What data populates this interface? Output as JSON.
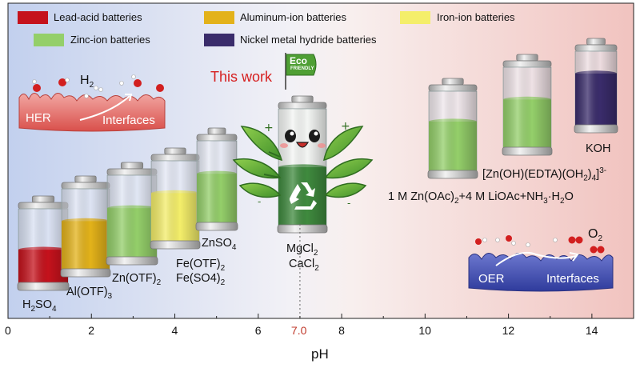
{
  "colors": {
    "bg_left": "#c5d3ef",
    "bg_mid": "#f6f3f4",
    "bg_right": "#f1c6c2",
    "lead_acid": "#c5121c",
    "aluminum_ion": "#e3b21a",
    "iron_ion": "#f4ee6a",
    "zinc_ion": "#94cf6a",
    "nimh": "#3a2c6b",
    "this_work_text": "#d62020",
    "eco_flag": "#5aaa3a",
    "seven_tick": "#c0392b"
  },
  "legend": [
    {
      "label": "Lead-acid batteries",
      "color": "#c5121c"
    },
    {
      "label": "Aluminum-ion batteries",
      "color": "#e3b21a"
    },
    {
      "label": "Iron-ion batteries",
      "color": "#f4ee6a"
    },
    {
      "label": "Zinc-ion batteries",
      "color": "#94cf6a"
    },
    {
      "label": "Nickel metal hydride batteries",
      "color": "#3a2c6b"
    }
  ],
  "annotations": {
    "this_work": "This work",
    "eco_line1": "Eco",
    "eco_line2": "FRIENDLY",
    "her_label": "HER",
    "her_interfaces": "Interfaces",
    "h2_base": "H",
    "h2_sub": "2",
    "oer_label": "OER",
    "oer_interfaces": "Interfaces",
    "o2_base": "O",
    "o2_sub": "2"
  },
  "labels": {
    "h2so4": {
      "a": "H",
      "b": "2",
      "c": "SO",
      "d": "4"
    },
    "al_otf": {
      "a": "Al(OTF)",
      "b": "3"
    },
    "zn_otf": {
      "a": "Zn(OTF)",
      "b": "2"
    },
    "fe_otf": {
      "a": "Fe(OTF)",
      "b": "2"
    },
    "fe_so4": {
      "a": "Fe(SO4)",
      "b": "2"
    },
    "znso4": {
      "a": "ZnSO",
      "b": "4"
    },
    "mgcl": {
      "a": "MgCl",
      "b": "2"
    },
    "cacl": {
      "a": "CaCl",
      "b": "2"
    },
    "zn_acetate": {
      "a": "1 M Zn(OAc)",
      "b": "2",
      "c": "+4 M LiOAc+NH",
      "d": "3",
      "e": "·H",
      "f": "2",
      "g": "O"
    },
    "zn_edta": {
      "a": "[Zn(OH)(EDTA)(OH",
      "b": "2",
      "c": ")",
      "d": "4",
      "e": "]",
      "f": "3-"
    },
    "koh": {
      "a": "KOH"
    }
  },
  "axis": {
    "xlabel": "pH",
    "ticks": [
      "0",
      "2",
      "4",
      "6",
      "8",
      "10",
      "12",
      "14"
    ],
    "highlight_tick": "7.0",
    "range": [
      0,
      15
    ]
  },
  "batteries": [
    {
      "name": "lead-acid",
      "category": "H2SO4",
      "ph": 1,
      "fill": 0.45,
      "color": "#c5121c"
    },
    {
      "name": "aluminum-ion",
      "category": "Al(OTF)3",
      "ph": 2,
      "fill": 0.6,
      "color": "#e3b21a"
    },
    {
      "name": "zinc-ion-otf",
      "category": "Zn(OTF)2",
      "ph": 3,
      "fill": 0.6,
      "color": "#94cf6a"
    },
    {
      "name": "iron-ion",
      "category": "Fe(OTF)2 Fe(SO4)2",
      "ph": 4,
      "fill": 0.6,
      "color": "#f4ee6a"
    },
    {
      "name": "zinc-ion-znso4",
      "category": "ZnSO4",
      "ph": 5,
      "fill": 0.6,
      "color": "#94cf6a"
    },
    {
      "name": "this-work",
      "category": "MgCl2 CaCl2",
      "ph": 7,
      "fill": 0.5,
      "color": "#3f8a3e"
    },
    {
      "name": "zinc-ion-acetate",
      "category": "1 M Zn(OAc)2",
      "ph": 10,
      "fill": 0.62,
      "color": "#94cf6a"
    },
    {
      "name": "zinc-ion-edta",
      "category": "[Zn(OH)(EDTA)(OH2)4]3-",
      "ph": 12,
      "fill": 0.6,
      "color": "#94cf6a"
    },
    {
      "name": "nimh",
      "category": "KOH",
      "ph": 14,
      "fill": 0.7,
      "color": "#3a2c6b"
    }
  ]
}
